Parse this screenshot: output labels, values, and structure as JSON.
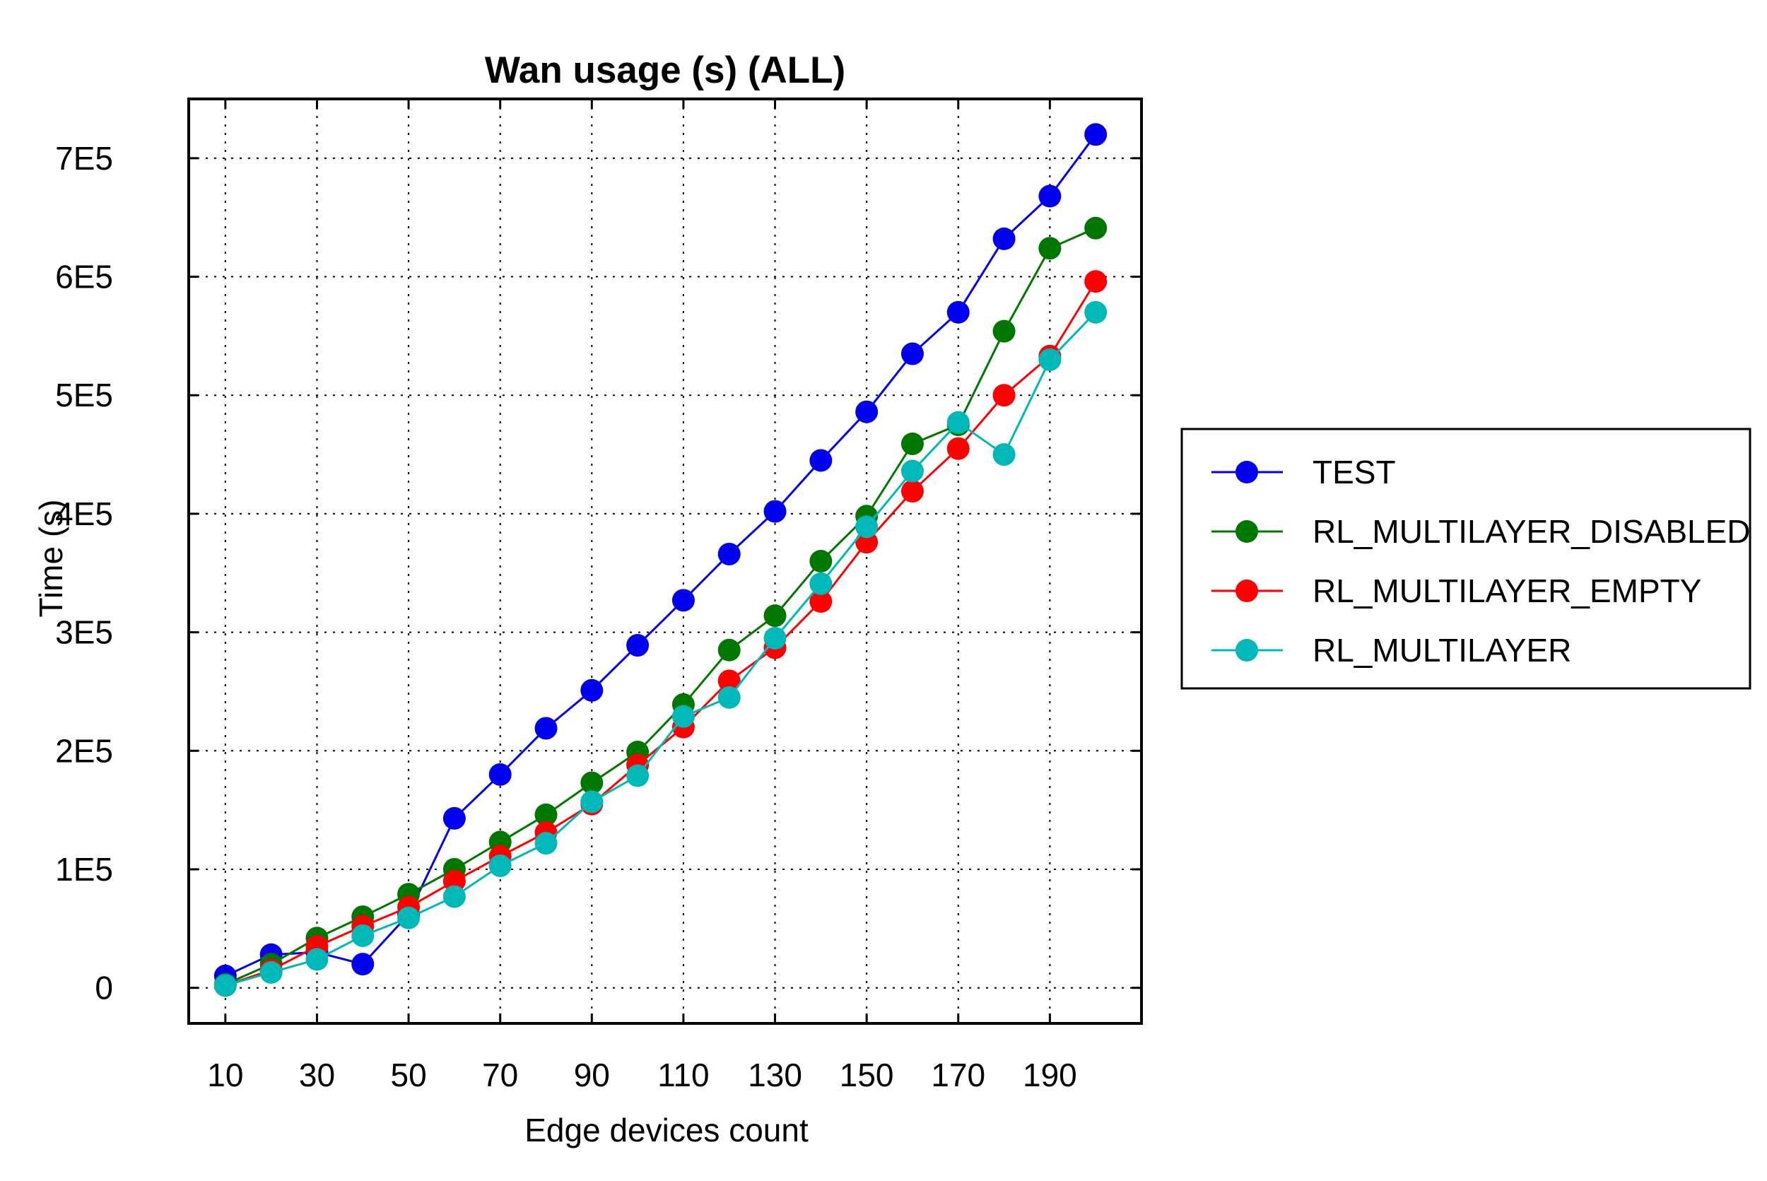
{
  "chart_data": {
    "type": "line",
    "title": "Wan usage (s) (ALL)",
    "xlabel": "Edge devices count",
    "ylabel": "Time (s)",
    "x": [
      10,
      20,
      30,
      40,
      50,
      60,
      70,
      80,
      90,
      100,
      110,
      120,
      130,
      140,
      150,
      160,
      170,
      180,
      190,
      200
    ],
    "xticks": [
      10,
      30,
      50,
      70,
      90,
      110,
      130,
      150,
      170,
      190
    ],
    "xtick_labels": [
      "10",
      "30",
      "50",
      "70",
      "90",
      "110",
      "130",
      "150",
      "170",
      "190"
    ],
    "xlim": [
      2,
      210
    ],
    "yticks": [
      0,
      100000,
      200000,
      300000,
      400000,
      500000,
      600000,
      700000
    ],
    "ytick_labels": [
      "0",
      "1E5",
      "2E5",
      "3E5",
      "4E5",
      "5E5",
      "6E5",
      "7E5"
    ],
    "ylim": [
      -30000,
      750000
    ],
    "grid": true,
    "legend_position": "right, outside plot",
    "series": [
      {
        "name": "TEST",
        "color": "#0000ee",
        "values": [
          10000,
          28000,
          30000,
          20000,
          62000,
          143000,
          180000,
          219000,
          251000,
          289000,
          327000,
          366000,
          402000,
          445000,
          486000,
          535000,
          570000,
          632000,
          668000,
          720000
        ]
      },
      {
        "name": "RL_MULTILAYER_DISABLED",
        "color": "#007800",
        "values": [
          3000,
          20000,
          42000,
          60000,
          79000,
          100000,
          123000,
          146000,
          173000,
          199000,
          239000,
          285000,
          314000,
          360000,
          398000,
          459000,
          475000,
          554000,
          624000,
          641000
        ]
      },
      {
        "name": "RL_MULTILAYER_EMPTY",
        "color": "#ff0000",
        "values": [
          2000,
          15000,
          35000,
          52000,
          68000,
          90000,
          111000,
          131000,
          155000,
          188000,
          220000,
          259000,
          287000,
          326000,
          376000,
          419000,
          455000,
          500000,
          533000,
          596000
        ]
      },
      {
        "name": "RL_MULTILAYER",
        "color": "#00b8b8",
        "values": [
          2000,
          13000,
          24000,
          44000,
          59000,
          77000,
          103000,
          122000,
          157000,
          179000,
          229000,
          245000,
          295000,
          341000,
          389000,
          436000,
          477000,
          450000,
          530000,
          570000
        ]
      }
    ]
  }
}
